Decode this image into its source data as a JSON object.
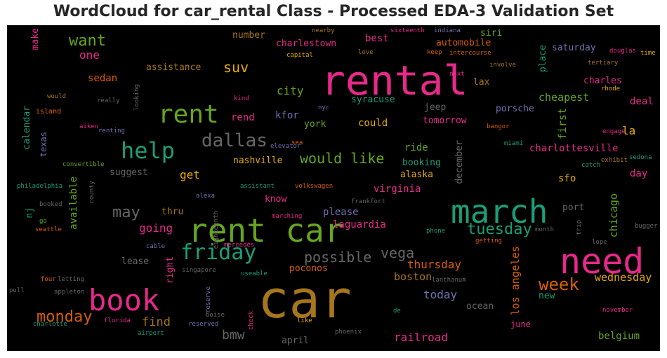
{
  "figure": {
    "title": "WordCloud for car_rental Class - Processed EDA-3 Validation Set"
  },
  "palette": {
    "magenta": "#e7298a",
    "green": "#66a61e",
    "teal": "#1b9e77",
    "gold": "#a6761d",
    "orange": "#d95f02",
    "purple": "#7570b3",
    "yellow": "#e6ab02",
    "gray": "#666666"
  },
  "words": [
    {
      "text": "car",
      "color": "gold"
    },
    {
      "text": "rental",
      "color": "magenta"
    },
    {
      "text": "rent car",
      "color": "green"
    },
    {
      "text": "need",
      "color": "magenta"
    },
    {
      "text": "march",
      "color": "teal"
    },
    {
      "text": "book",
      "color": "magenta"
    },
    {
      "text": "rent",
      "color": "green"
    },
    {
      "text": "help",
      "color": "teal"
    },
    {
      "text": "friday",
      "color": "teal"
    },
    {
      "text": "dallas",
      "color": "gray"
    },
    {
      "text": "monday",
      "color": "orange"
    },
    {
      "text": "week",
      "color": "orange"
    },
    {
      "text": "tuesday",
      "color": "teal"
    },
    {
      "text": "may",
      "color": "gray"
    },
    {
      "text": "possible",
      "color": "gray"
    },
    {
      "text": "want",
      "color": "green"
    },
    {
      "text": "would like",
      "color": "green"
    },
    {
      "text": "vega",
      "color": "gray"
    },
    {
      "text": "going",
      "color": "magenta"
    },
    {
      "text": "suv",
      "color": "yellow"
    },
    {
      "text": "city",
      "color": "green"
    },
    {
      "text": "bmw",
      "color": "gray"
    },
    {
      "text": "find",
      "color": "gold"
    },
    {
      "text": "thursday",
      "color": "orange"
    },
    {
      "text": "wednesday",
      "color": "yellow"
    },
    {
      "text": "cheapest",
      "color": "green"
    },
    {
      "text": "today",
      "color": "purple"
    },
    {
      "text": "boston",
      "color": "gold"
    },
    {
      "text": "railroad",
      "color": "magenta"
    },
    {
      "text": "get",
      "color": "yellow"
    },
    {
      "text": "rend",
      "color": "magenta"
    },
    {
      "text": "could",
      "color": "yellow"
    },
    {
      "text": "charlottesville",
      "color": "magenta"
    },
    {
      "text": "la",
      "color": "yellow"
    },
    {
      "text": "belgium",
      "color": "green"
    },
    {
      "text": "one",
      "color": "magenta"
    },
    {
      "text": "sedan",
      "color": "orange"
    },
    {
      "text": "assistance",
      "color": "gold"
    },
    {
      "text": "kfor",
      "color": "purple"
    },
    {
      "text": "york",
      "color": "green"
    },
    {
      "text": "nashville",
      "color": "yellow"
    },
    {
      "text": "suggest",
      "color": "gray"
    },
    {
      "text": "thru",
      "color": "gold"
    },
    {
      "text": "know",
      "color": "magenta"
    },
    {
      "text": "please",
      "color": "purple"
    },
    {
      "text": "laguardia",
      "color": "magenta"
    },
    {
      "text": "lease",
      "color": "gray"
    },
    {
      "text": "poconos",
      "color": "orange"
    },
    {
      "text": "ocean",
      "color": "gray"
    },
    {
      "text": "virginia",
      "color": "magenta"
    },
    {
      "text": "alaska",
      "color": "yellow"
    },
    {
      "text": "booking",
      "color": "teal"
    },
    {
      "text": "ride",
      "color": "green"
    },
    {
      "text": "tomorrow",
      "color": "magenta"
    },
    {
      "text": "jeep",
      "color": "gray"
    },
    {
      "text": "syracuse",
      "color": "teal"
    },
    {
      "text": "porsche",
      "color": "purple"
    },
    {
      "text": "deal",
      "color": "magenta"
    },
    {
      "text": "charles",
      "color": "magenta"
    },
    {
      "text": "lax",
      "color": "gold"
    },
    {
      "text": "saturday",
      "color": "purple"
    },
    {
      "text": "automobile",
      "color": "orange"
    },
    {
      "text": "siri",
      "color": "green"
    },
    {
      "text": "best",
      "color": "magenta"
    },
    {
      "text": "charlestown",
      "color": "magenta"
    },
    {
      "text": "number",
      "color": "gold"
    },
    {
      "text": "sfo",
      "color": "yellow"
    },
    {
      "text": "day",
      "color": "magenta"
    },
    {
      "text": "port",
      "color": "gray"
    },
    {
      "text": "april",
      "color": "gray"
    },
    {
      "text": "new",
      "color": "teal"
    },
    {
      "text": "june",
      "color": "magenta"
    },
    {
      "text": "make",
      "color": "magenta"
    },
    {
      "text": "available",
      "color": "green"
    },
    {
      "text": "calendar",
      "color": "teal"
    },
    {
      "text": "texas",
      "color": "purple"
    },
    {
      "text": "nj",
      "color": "teal"
    },
    {
      "text": "right",
      "color": "magenta"
    },
    {
      "text": "first",
      "color": "green"
    },
    {
      "text": "chicago",
      "color": "green"
    },
    {
      "text": "los angeles",
      "color": "orange"
    },
    {
      "text": "december",
      "color": "gray"
    },
    {
      "text": "place",
      "color": "teal"
    },
    {
      "text": "island",
      "color": "orange"
    },
    {
      "text": "aiken",
      "color": "magenta"
    },
    {
      "text": "renting",
      "color": "purple"
    },
    {
      "text": "convertible",
      "color": "green"
    },
    {
      "text": "philadelphia",
      "color": "teal"
    },
    {
      "text": "go",
      "color": "green"
    },
    {
      "text": "booked",
      "color": "gray"
    },
    {
      "text": "seattle",
      "color": "orange"
    },
    {
      "text": "four",
      "color": "orange"
    },
    {
      "text": "letting",
      "color": "gray"
    },
    {
      "text": "pull",
      "color": "gray"
    },
    {
      "text": "appleton",
      "color": "gray"
    },
    {
      "text": "charlotte",
      "color": "teal"
    },
    {
      "text": "florida",
      "color": "magenta"
    },
    {
      "text": "airport",
      "color": "teal"
    },
    {
      "text": "reserved",
      "color": "purple"
    },
    {
      "text": "boise",
      "color": "gray"
    },
    {
      "text": "like",
      "color": "yellow"
    },
    {
      "text": "phoenix",
      "color": "gray"
    },
    {
      "text": "de",
      "color": "teal"
    },
    {
      "text": "singapore",
      "color": "gray"
    },
    {
      "text": "useable",
      "color": "teal"
    },
    {
      "text": "cable",
      "color": "purple"
    },
    {
      "text": "mercedes",
      "color": "magenta"
    },
    {
      "text": "alexa",
      "color": "purple"
    },
    {
      "text": "assistant",
      "color": "teal"
    },
    {
      "text": "volkswagen",
      "color": "orange"
    },
    {
      "text": "marching",
      "color": "magenta"
    },
    {
      "text": "frankfort",
      "color": "gray"
    },
    {
      "text": "phone",
      "color": "teal"
    },
    {
      "text": "getting",
      "color": "orange"
    },
    {
      "text": "month",
      "color": "gray"
    },
    {
      "text": "lope",
      "color": "gray"
    },
    {
      "text": "bugger",
      "color": "gray"
    },
    {
      "text": "lanthanum",
      "color": "gray"
    },
    {
      "text": "november",
      "color": "magenta"
    },
    {
      "text": "would",
      "color": "gold"
    },
    {
      "text": "really",
      "color": "gray"
    },
    {
      "text": "kind",
      "color": "magenta"
    },
    {
      "text": "nyc",
      "color": "purple"
    },
    {
      "text": "sea",
      "color": "orange"
    },
    {
      "text": "elevator",
      "color": "purple"
    },
    {
      "text": "bangor",
      "color": "orange"
    },
    {
      "text": "engage",
      "color": "magenta"
    },
    {
      "text": "miami",
      "color": "teal"
    },
    {
      "text": "sedona",
      "color": "teal"
    },
    {
      "text": "exhibit",
      "color": "gold"
    },
    {
      "text": "catch",
      "color": "teal"
    },
    {
      "text": "rhode",
      "color": "yellow"
    },
    {
      "text": "tertiary",
      "color": "gold"
    },
    {
      "text": "douglas",
      "color": "magenta"
    },
    {
      "text": "time",
      "color": "yellow"
    },
    {
      "text": "nearby",
      "color": "gold"
    },
    {
      "text": "sixteenth",
      "color": "magenta"
    },
    {
      "text": "indiana",
      "color": "purple"
    },
    {
      "text": "capital",
      "color": "yellow"
    },
    {
      "text": "love",
      "color": "gold"
    },
    {
      "text": "keep",
      "color": "orange"
    },
    {
      "text": "intercourse",
      "color": "orange"
    },
    {
      "text": "next",
      "color": "magenta"
    },
    {
      "text": "involve",
      "color": "gold"
    },
    {
      "text": "looking",
      "color": "gray"
    },
    {
      "text": "county",
      "color": "gray"
    },
    {
      "text": "eighteenth",
      "color": "gray"
    },
    {
      "text": "reserve",
      "color": "purple"
    },
    {
      "text": "check",
      "color": "magenta"
    },
    {
      "text": "trip",
      "color": "gray"
    }
  ]
}
